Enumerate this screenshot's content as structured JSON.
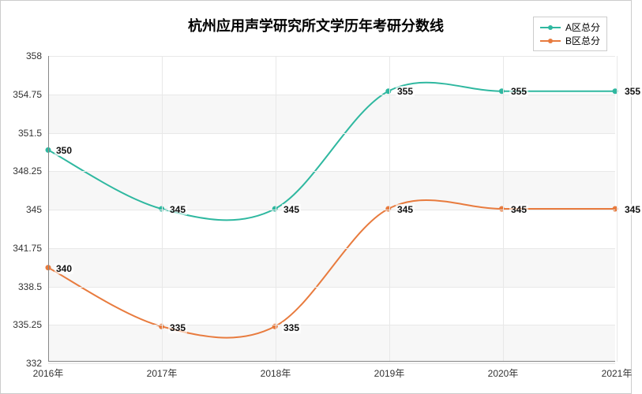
{
  "title": "杭州应用声学研究所文学历年考研分数线",
  "title_fontsize": 18,
  "legend": {
    "items": [
      {
        "label": "A区总分",
        "color": "#2fb8a0"
      },
      {
        "label": "B区总分",
        "color": "#e87b3e"
      }
    ]
  },
  "chart": {
    "type": "line",
    "background_color": "#ffffff",
    "grid_color": "#e8e8e8",
    "categories": [
      "2016年",
      "2017年",
      "2018年",
      "2019年",
      "2020年",
      "2021年"
    ],
    "ylim": [
      332,
      358
    ],
    "y_ticks": [
      332,
      335.25,
      338.5,
      341.75,
      345,
      348.25,
      351.5,
      354.75,
      358
    ],
    "x_axis_color": "#888888",
    "y_axis_color": "#888888",
    "label_fontsize": 12,
    "line_width": 2,
    "marker_radius": 3.5,
    "series": [
      {
        "name": "A区总分",
        "color": "#2fb8a0",
        "values": [
          350,
          345,
          345,
          355,
          355,
          355
        ],
        "labels": [
          "350",
          "345",
          "345",
          "355",
          "355",
          "355"
        ]
      },
      {
        "name": "B区总分",
        "color": "#e87b3e",
        "values": [
          340,
          335,
          335,
          345,
          345,
          345
        ],
        "labels": [
          "340",
          "335",
          "335",
          "345",
          "345",
          "345"
        ]
      }
    ]
  }
}
